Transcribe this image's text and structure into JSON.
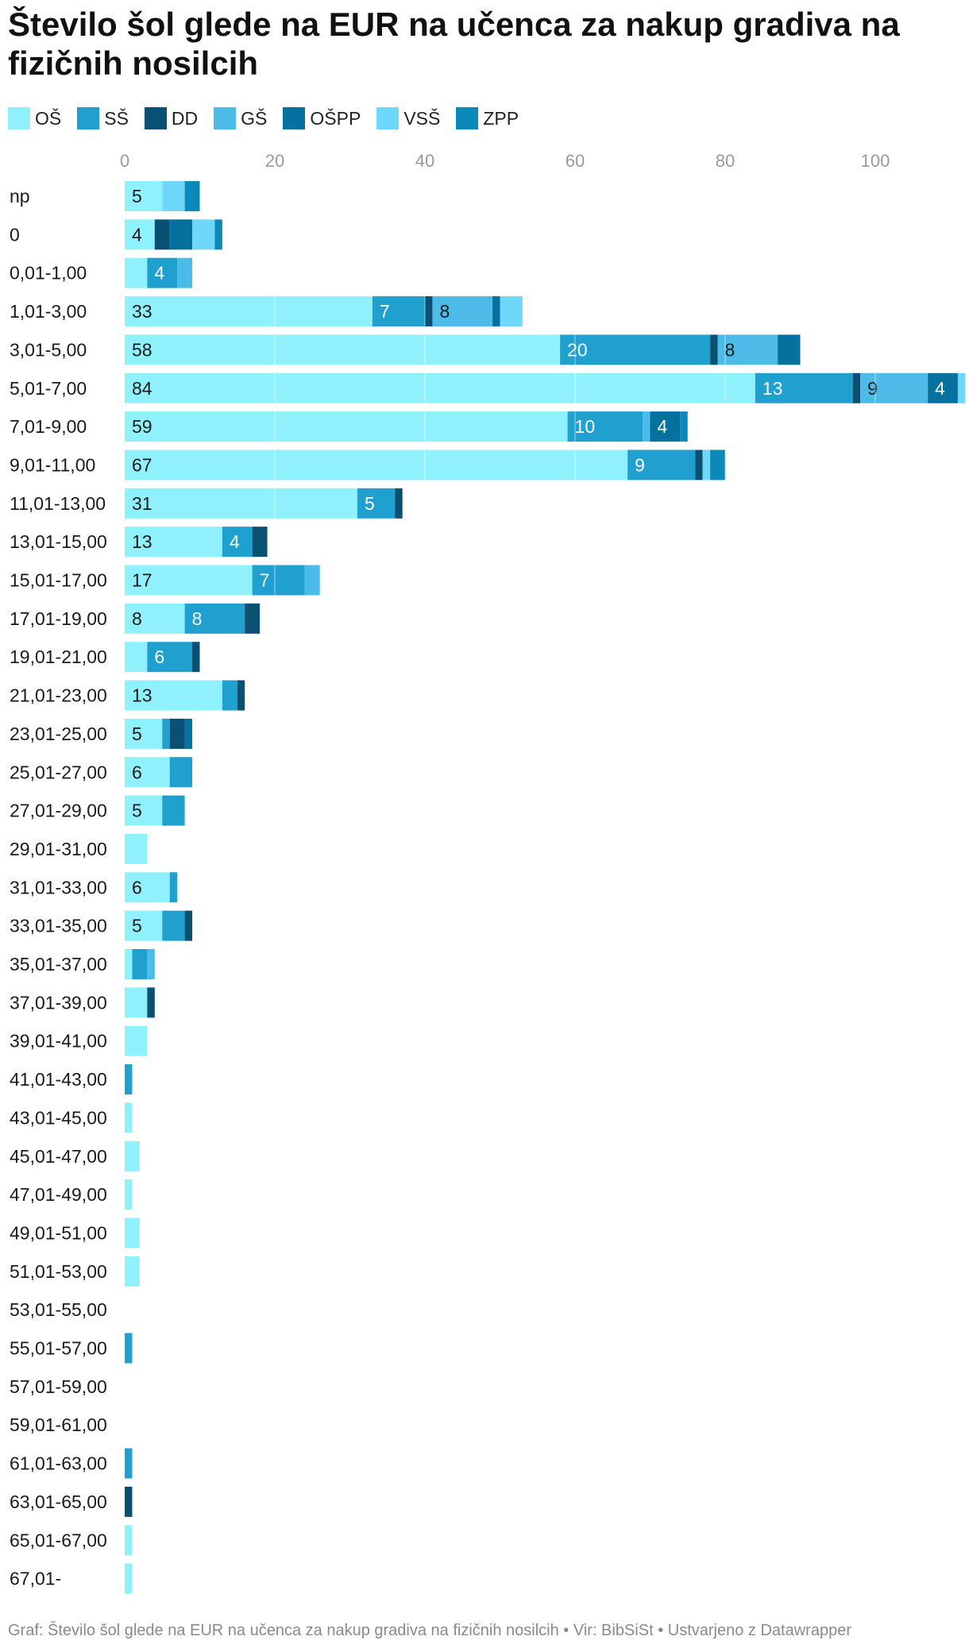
{
  "title": "Število šol glede na EUR na učenca za nakup gradiva na fizičnih nosilcih",
  "footer": {
    "prefix": "Graf: ",
    "chart_name": "Število šol glede na EUR na učenca za nakup gradiva na fizičnih nosilcih",
    "sep1": " • ",
    "source": "Vir: BibSiSt",
    "sep2": " • ",
    "credit": "Ustvarjeno z Datawrapper"
  },
  "chart_data": {
    "type": "bar",
    "orientation": "horizontal",
    "stacked": true,
    "title": "Število šol glede na EUR na učenca za nakup gradiva na fizičnih nosilcih",
    "xlim": [
      0,
      112
    ],
    "xticks": [
      0,
      20,
      40,
      60,
      80,
      100
    ],
    "grid": true,
    "legend_position": "top-left",
    "categories": [
      "np",
      "0",
      "0,01-1,00",
      "1,01-3,00",
      "3,01-5,00",
      "5,01-7,00",
      "7,01-9,00",
      "9,01-11,00",
      "11,01-13,00",
      "13,01-15,00",
      "15,01-17,00",
      "17,01-19,00",
      "19,01-21,00",
      "21,01-23,00",
      "23,01-25,00",
      "25,01-27,00",
      "27,01-29,00",
      "29,01-31,00",
      "31,01-33,00",
      "33,01-35,00",
      "35,01-37,00",
      "37,01-39,00",
      "39,01-41,00",
      "41,01-43,00",
      "43,01-45,00",
      "45,01-47,00",
      "47,01-49,00",
      "49,01-51,00",
      "51,01-53,00",
      "53,01-55,00",
      "55,01-57,00",
      "57,01-59,00",
      "59,01-61,00",
      "61,01-63,00",
      "63,01-65,00",
      "65,01-67,00",
      "67,01-"
    ],
    "series": [
      {
        "name": "OŠ",
        "color": "#8ff1fb",
        "text_color": "#1a1a1a",
        "values": [
          5,
          4,
          3,
          33,
          58,
          84,
          59,
          67,
          31,
          13,
          17,
          8,
          3,
          13,
          5,
          6,
          5,
          3,
          6,
          5,
          1,
          3,
          3,
          0,
          1,
          2,
          1,
          2,
          2,
          0,
          0,
          0,
          0,
          0,
          0,
          1,
          1
        ]
      },
      {
        "name": "SŠ",
        "color": "#1fa0cf",
        "text_color": "#ffffff",
        "values": [
          0,
          0,
          4,
          7,
          20,
          13,
          10,
          9,
          5,
          4,
          7,
          8,
          6,
          2,
          1,
          3,
          3,
          0,
          1,
          3,
          2,
          0,
          0,
          1,
          0,
          0,
          0,
          0,
          0,
          0,
          1,
          0,
          0,
          1,
          0,
          0,
          0
        ]
      },
      {
        "name": "DD",
        "color": "#0a5073",
        "text_color": "#ffffff",
        "values": [
          0,
          2,
          0,
          1,
          1,
          1,
          0,
          1,
          1,
          2,
          0,
          2,
          1,
          1,
          2,
          0,
          0,
          0,
          0,
          1,
          0,
          1,
          0,
          0,
          0,
          0,
          0,
          0,
          0,
          0,
          0,
          0,
          0,
          0,
          1,
          0,
          0
        ]
      },
      {
        "name": "GŠ",
        "color": "#4cbbe8",
        "text_color": "#1a1a1a",
        "values": [
          0,
          0,
          2,
          8,
          8,
          9,
          1,
          0,
          0,
          0,
          2,
          0,
          0,
          0,
          0,
          0,
          0,
          0,
          0,
          0,
          1,
          0,
          0,
          0,
          0,
          0,
          0,
          0,
          0,
          0,
          0,
          0,
          0,
          0,
          0,
          0,
          0
        ]
      },
      {
        "name": "OŠPP",
        "color": "#06719e",
        "text_color": "#ffffff",
        "values": [
          0,
          3,
          0,
          1,
          3,
          4,
          4,
          0,
          0,
          0,
          0,
          0,
          0,
          0,
          1,
          0,
          0,
          0,
          0,
          0,
          0,
          0,
          0,
          0,
          0,
          0,
          0,
          0,
          0,
          0,
          0,
          0,
          0,
          0,
          0,
          0,
          0
        ]
      },
      {
        "name": "VSŠ",
        "color": "#6fd8fa",
        "text_color": "#1a1a1a",
        "values": [
          3,
          3,
          0,
          3,
          0,
          1,
          0,
          1,
          0,
          0,
          0,
          0,
          0,
          0,
          0,
          0,
          0,
          0,
          0,
          0,
          0,
          0,
          0,
          0,
          0,
          0,
          0,
          0,
          0,
          0,
          0,
          0,
          0,
          0,
          0,
          0,
          0
        ]
      },
      {
        "name": "ZPP",
        "color": "#0a8ab8",
        "text_color": "#ffffff",
        "values": [
          2,
          1,
          0,
          0,
          0,
          0,
          1,
          2,
          0,
          0,
          0,
          0,
          0,
          0,
          0,
          0,
          0,
          0,
          0,
          0,
          0,
          0,
          0,
          0,
          0,
          0,
          0,
          0,
          0,
          0,
          0,
          0,
          0,
          0,
          0,
          0,
          0
        ]
      }
    ],
    "data_labels": {
      "np": {
        "OŠ": "5"
      },
      "0": {
        "OŠ": "4"
      },
      "0,01-1,00": {
        "SŠ": "4"
      },
      "1,01-3,00": {
        "OŠ": "33",
        "SŠ": "7",
        "GŠ": "8"
      },
      "3,01-5,00": {
        "OŠ": "58",
        "SŠ": "20",
        "GŠ": "8"
      },
      "5,01-7,00": {
        "OŠ": "84",
        "SŠ": "13",
        "GŠ": "9",
        "OŠPP": "4"
      },
      "7,01-9,00": {
        "OŠ": "59",
        "SŠ": "10",
        "OŠPP": "4"
      },
      "9,01-11,00": {
        "OŠ": "67",
        "SŠ": "9"
      },
      "11,01-13,00": {
        "OŠ": "31",
        "SŠ": "5"
      },
      "13,01-15,00": {
        "OŠ": "13",
        "SŠ": "4"
      },
      "15,01-17,00": {
        "OŠ": "17",
        "SŠ": "7"
      },
      "17,01-19,00": {
        "OŠ": "8",
        "SŠ": "8"
      },
      "19,01-21,00": {
        "SŠ": "6"
      },
      "21,01-23,00": {
        "OŠ": "13"
      },
      "23,01-25,00": {
        "OŠ": "5"
      },
      "25,01-27,00": {
        "OŠ": "6"
      },
      "27,01-29,00": {
        "OŠ": "5"
      },
      "31,01-33,00": {
        "OŠ": "6"
      },
      "33,01-35,00": {
        "OŠ": "5"
      }
    }
  }
}
